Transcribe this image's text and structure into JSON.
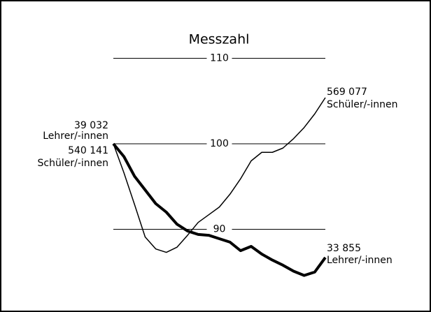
{
  "chart_data": {
    "type": "line",
    "title": "Messzahl",
    "categories": [
      null,
      null,
      null,
      null,
      null,
      null,
      null,
      null,
      null,
      null,
      null,
      null,
      null,
      null,
      null,
      null,
      null,
      null,
      null,
      null,
      null
    ],
    "series": [
      {
        "name": "Schüler/-innen",
        "color": "#000000",
        "width": 1.5,
        "start_label": "540 141",
        "end_label": "569 077",
        "values": [
          100,
          96.6,
          92.9,
          89.1,
          87.7,
          87.3,
          87.9,
          89.3,
          90.8,
          91.7,
          92.6,
          94.1,
          95.9,
          98.0,
          99.0,
          99.0,
          99.5,
          100.6,
          101.9,
          103.5,
          105.4
        ]
      },
      {
        "name": "Lehrer/-innen",
        "color": "#000000",
        "width": 4,
        "start_label": "39 032",
        "end_label": "33 855",
        "values": [
          100,
          98.5,
          96.2,
          94.6,
          93.0,
          92.0,
          90.6,
          89.8,
          89.4,
          89.3,
          88.9,
          88.5,
          87.5,
          88.0,
          87.1,
          86.4,
          85.8,
          85.1,
          84.6,
          85.0,
          86.7
        ]
      }
    ],
    "ylim": [
      82,
      113
    ],
    "yticks": [
      90,
      100,
      110
    ],
    "grid": true
  }
}
